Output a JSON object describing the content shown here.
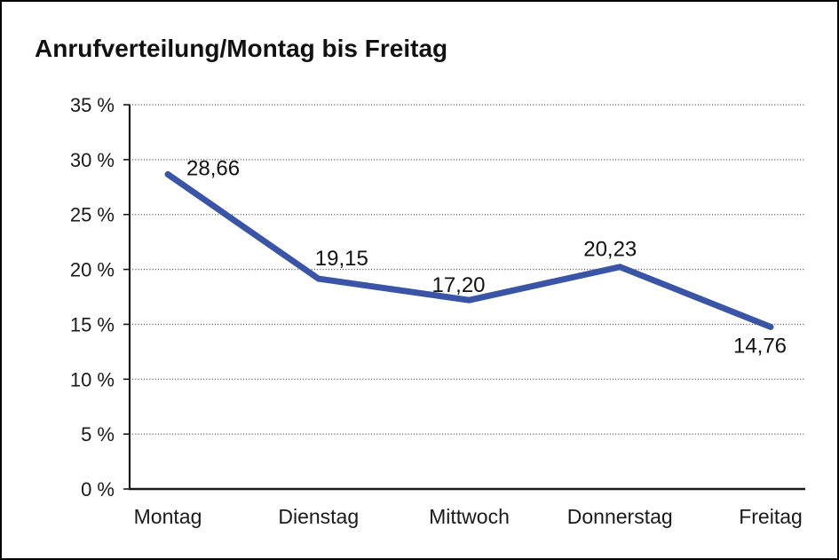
{
  "frame": {
    "background": "#ffffff",
    "border_color": "#000000"
  },
  "chart_data": {
    "type": "line",
    "title": "Anrufverteilung/Montag bis Freitag",
    "categories": [
      "Montag",
      "Dienstag",
      "Mittwoch",
      "Donnerstag",
      "Freitag"
    ],
    "values": [
      28.66,
      19.15,
      17.2,
      20.23,
      14.76
    ],
    "value_labels": [
      "28,66",
      "19,15",
      "17,20",
      "20,23",
      "14,76"
    ],
    "ylabel": "",
    "xlabel": "",
    "y_axis": {
      "min": 0,
      "max": 35,
      "step": 5,
      "unit": "%",
      "tick_labels_top_down": [
        "35 %",
        "30 %",
        "25 %",
        "20 %",
        "15 %",
        "10 %",
        "5 %",
        "0 %"
      ]
    },
    "grid": "horizontal-dotted",
    "legend": "none",
    "colors": {
      "line": "#3A55A5",
      "axis": "#1a1a1a",
      "grid": "#4d4d4d",
      "text": "#1a1a1a"
    }
  }
}
